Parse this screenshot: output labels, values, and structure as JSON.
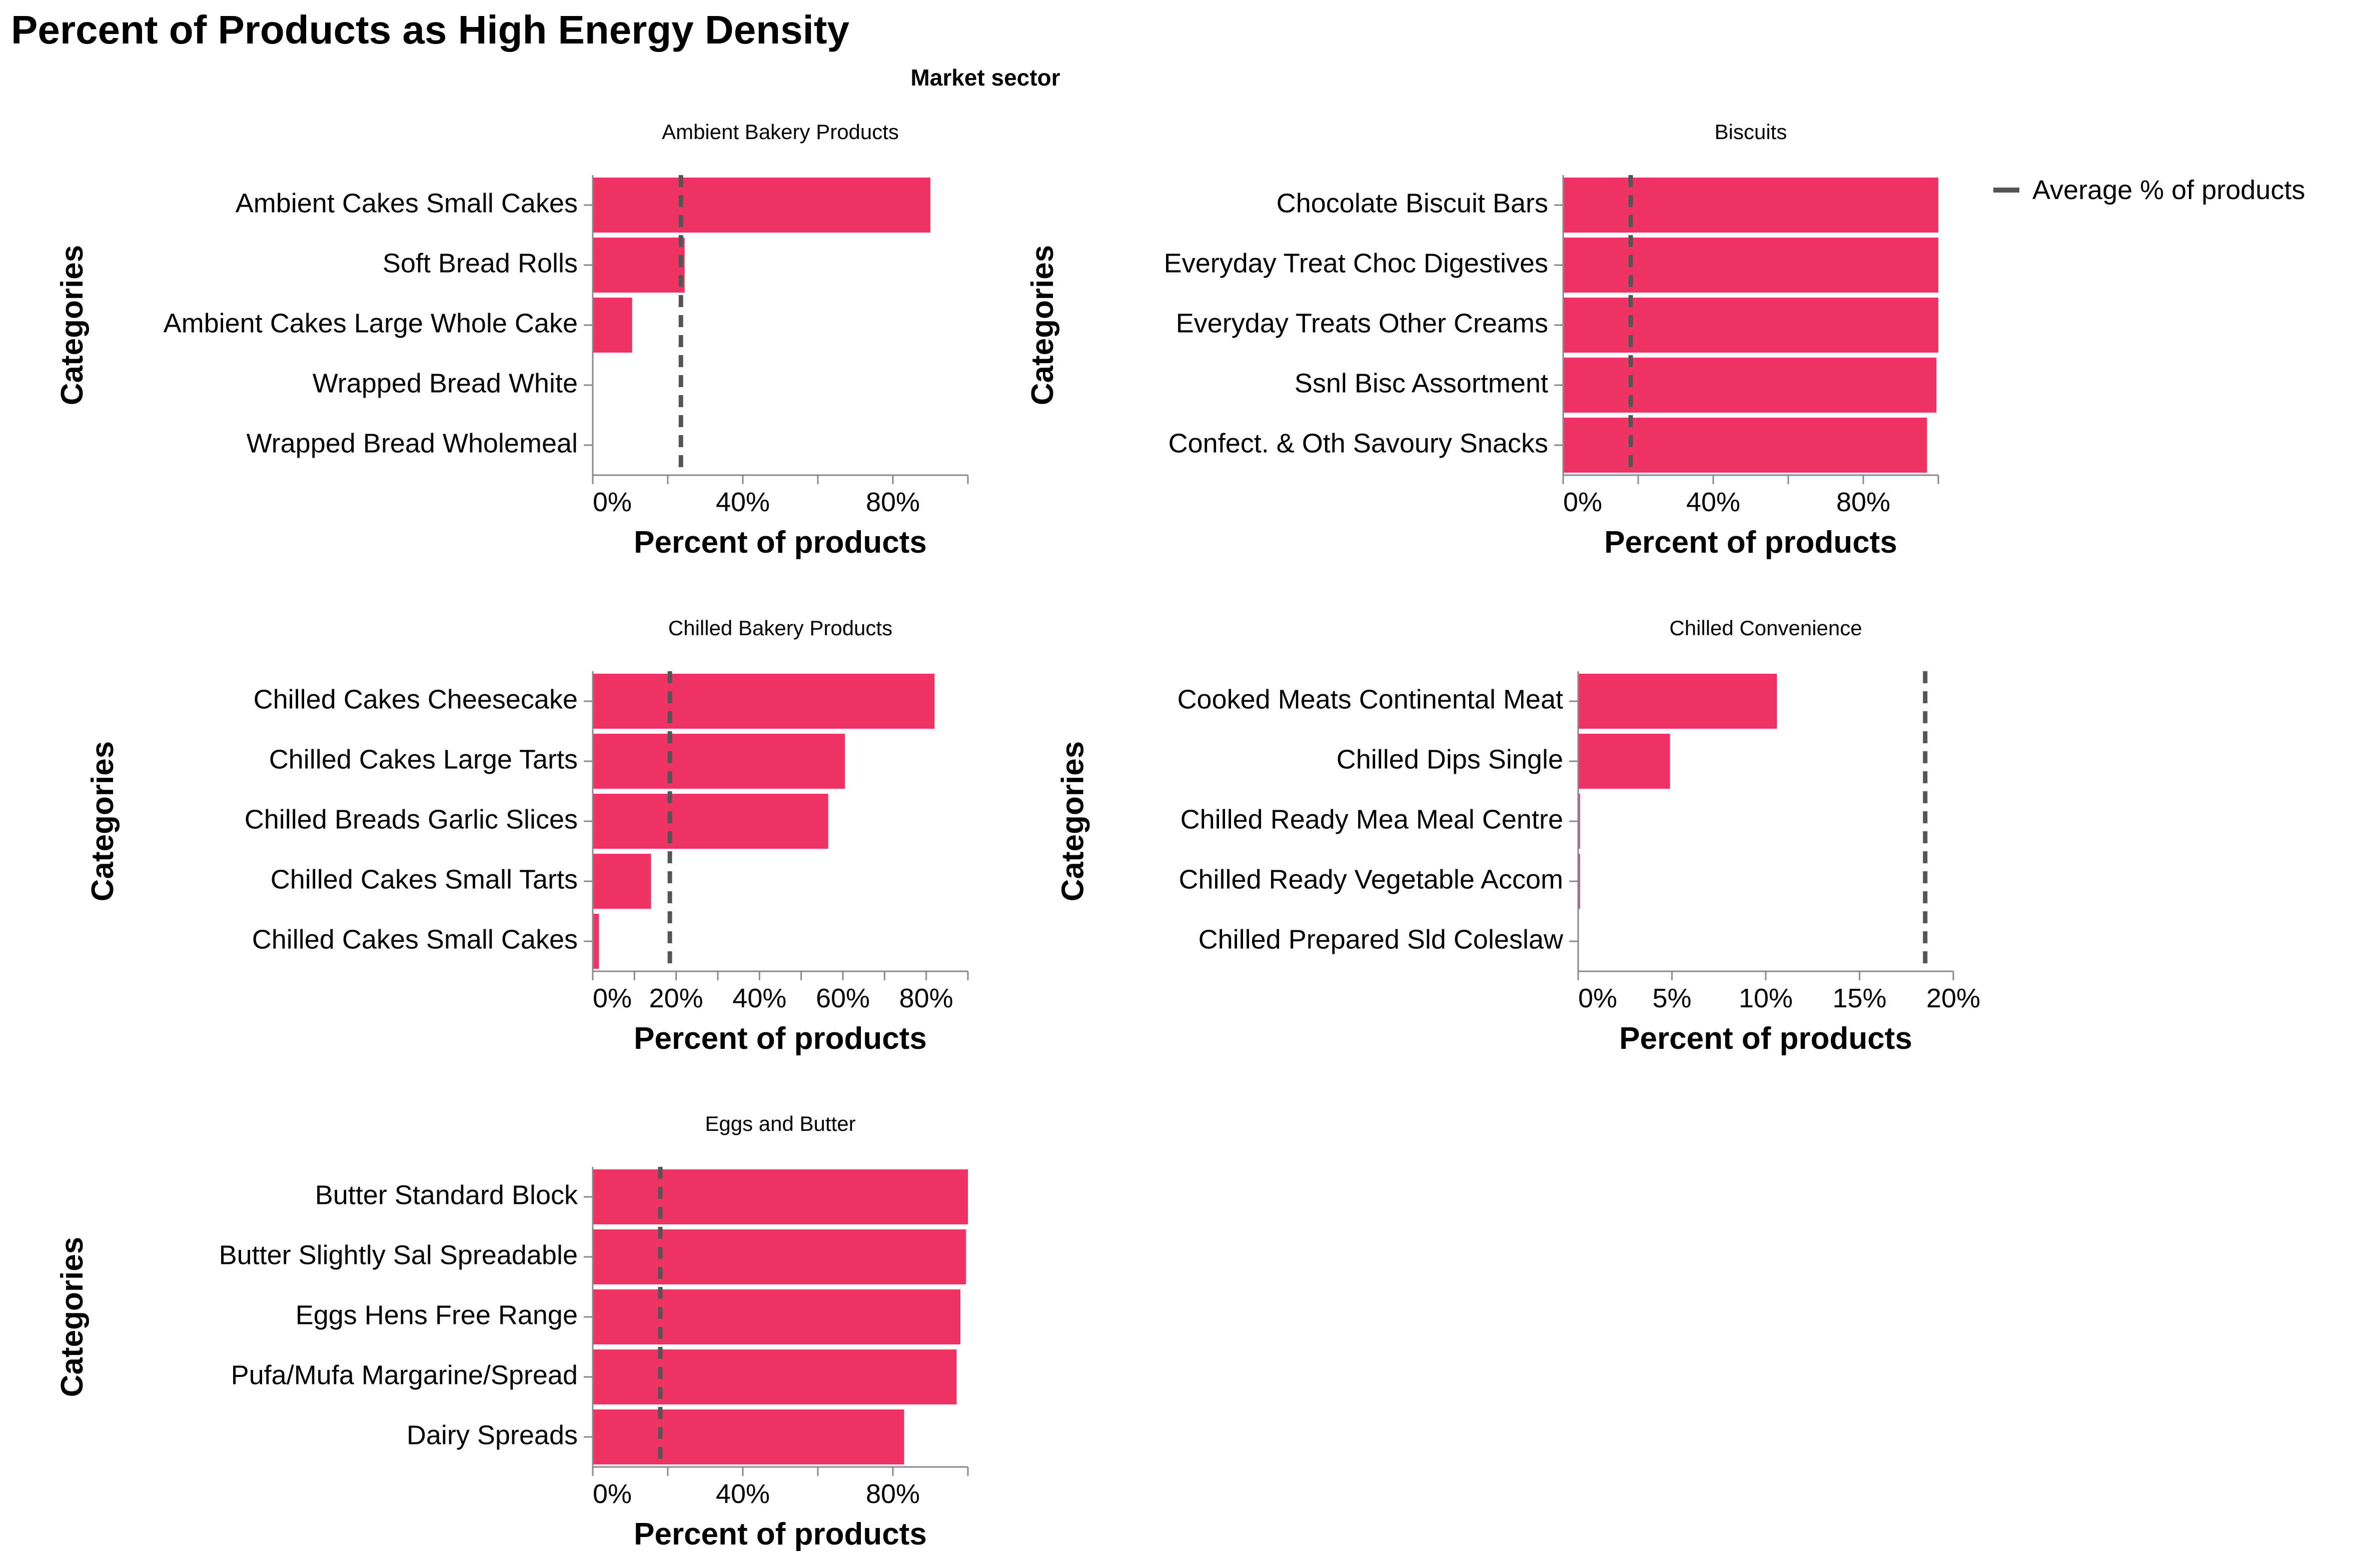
{
  "title": "Percent of Products as High Energy Density",
  "facet_header": "Market sector",
  "legend": {
    "label": "Average % of products",
    "rule_color": "#555555"
  },
  "bar_color": "#ef3463",
  "chart_data": [
    {
      "type": "bar",
      "orientation": "horizontal",
      "title": "Ambient Bakery Products",
      "xlabel": "Percent of products",
      "ylabel": "Categories",
      "xlim": [
        0,
        1
      ],
      "ticks": [
        0,
        0.2,
        0.4,
        0.6,
        0.8,
        1
      ],
      "tick_labels": [
        "0%",
        "",
        "40%",
        "",
        "80%",
        ""
      ],
      "categories": [
        "Ambient Cakes Small Cakes",
        "Soft Bread Rolls",
        "Ambient Cakes Large Whole Cake",
        "Wrapped Bread White",
        "Wrapped Bread Wholemeal"
      ],
      "values": [
        0.9,
        0.245,
        0.105,
        0.0,
        0.0
      ],
      "average": 0.235
    },
    {
      "type": "bar",
      "orientation": "horizontal",
      "title": "Biscuits",
      "xlabel": "Percent of products",
      "ylabel": "Categories",
      "xlim": [
        0,
        1
      ],
      "ticks": [
        0,
        0.2,
        0.4,
        0.6,
        0.8,
        1
      ],
      "tick_labels": [
        "0%",
        "",
        "40%",
        "",
        "80%",
        ""
      ],
      "categories": [
        "Chocolate Biscuit Bars",
        "Everyday Treat Choc Digestives",
        "Everyday Treats Other Creams",
        "Ssnl Bisc Assortment",
        "Confect. & Oth Savoury Snacks"
      ],
      "values": [
        1.0,
        1.0,
        1.0,
        0.995,
        0.97
      ],
      "average": 0.18
    },
    {
      "type": "bar",
      "orientation": "horizontal",
      "title": "Chilled Bakery Products",
      "xlabel": "Percent of products",
      "ylabel": "Categories",
      "xlim": [
        0,
        0.9
      ],
      "ticks": [
        0,
        0.1,
        0.2,
        0.3,
        0.4,
        0.5,
        0.6,
        0.7,
        0.8,
        0.9
      ],
      "tick_labels": [
        "0%",
        "",
        "20%",
        "",
        "40%",
        "",
        "60%",
        "",
        "80%",
        ""
      ],
      "categories": [
        "Chilled Cakes Cheesecake",
        "Chilled Cakes Large Tarts",
        "Chilled Breads Garlic Slices",
        "Chilled Cakes Small Tarts",
        "Chilled Cakes Small Cakes"
      ],
      "values": [
        0.82,
        0.605,
        0.565,
        0.14,
        0.015
      ],
      "average": 0.185
    },
    {
      "type": "bar",
      "orientation": "horizontal",
      "title": "Chilled Convenience",
      "xlabel": "Percent of products",
      "ylabel": "Categories",
      "xlim": [
        0,
        0.2
      ],
      "ticks": [
        0,
        0.05,
        0.1,
        0.15,
        0.2
      ],
      "tick_labels": [
        "0%",
        "5%",
        "10%",
        "15%",
        "20%"
      ],
      "categories": [
        "Cooked Meats Continental Meat",
        "Chilled Dips Single",
        "Chilled Ready Mea Meal Centre",
        "Chilled Ready Vegetable Accom",
        "Chilled Prepared Sld Coleslaw"
      ],
      "values": [
        0.106,
        0.049,
        0.001,
        0.001,
        0.0
      ],
      "average": 0.185
    },
    {
      "type": "bar",
      "orientation": "horizontal",
      "title": "Eggs and Butter",
      "xlabel": "Percent of products",
      "ylabel": "Categories",
      "xlim": [
        0,
        1
      ],
      "ticks": [
        0,
        0.2,
        0.4,
        0.6,
        0.8,
        1
      ],
      "tick_labels": [
        "0%",
        "",
        "40%",
        "",
        "80%",
        ""
      ],
      "categories": [
        "Butter Standard Block",
        "Butter Slightly Sal Spreadable",
        "Eggs Hens Free Range",
        "Pufa/Mufa Margarine/Spread",
        "Dairy Spreads"
      ],
      "values": [
        1.0,
        0.995,
        0.98,
        0.97,
        0.83
      ],
      "average": 0.18
    }
  ]
}
